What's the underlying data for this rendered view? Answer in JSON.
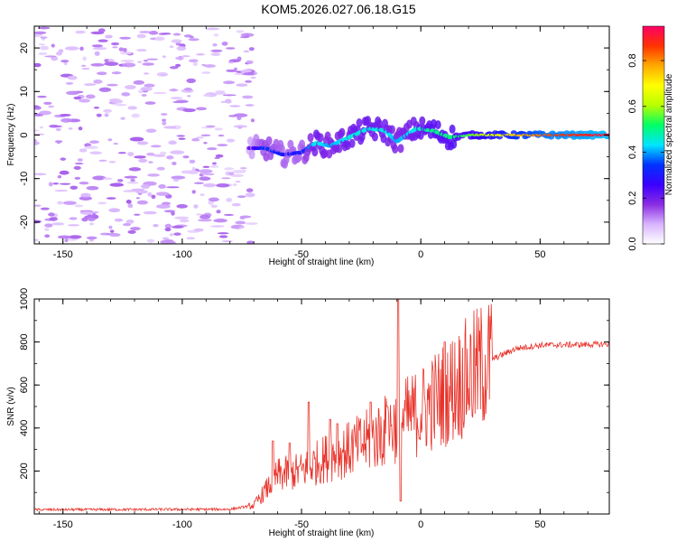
{
  "title": "KOM5.2026.027.06.18.G15",
  "chart_data": [
    {
      "type": "heatmap",
      "name": "spectrogram",
      "xlabel": "Height of straight line (km)",
      "ylabel": "Frequency (Hz)",
      "xlim": [
        -162,
        79
      ],
      "ylim": [
        -25,
        25
      ],
      "xticks": [
        -150,
        -100,
        -50,
        0,
        50
      ],
      "xtick_labels": [
        "-150",
        "-100",
        "-50",
        "0",
        "50"
      ],
      "yticks": [
        -20,
        -10,
        0,
        10,
        20
      ],
      "ytick_labels": [
        "-20",
        "-10",
        "0",
        "10",
        "20"
      ],
      "colorbar": {
        "label": "Normalized spectral amplitude",
        "range": [
          0,
          0.95
        ],
        "ticks": [
          0.0,
          0.2,
          0.4,
          0.6,
          0.8
        ],
        "tick_labels": [
          "0.0",
          "0.2",
          "0.4",
          "0.6",
          "0.8"
        ],
        "colors": [
          "#ffffff",
          "#d8b4fe",
          "#8a2be2",
          "#3a00ff",
          "#0033ff",
          "#00e5ff",
          "#00ff66",
          "#b8ff00",
          "#ffff00",
          "#ffaa00",
          "#ff3300",
          "#ff0066"
        ]
      },
      "ridge": [
        {
          "x": -72,
          "f": -3.0,
          "a": 0.2
        },
        {
          "x": -65,
          "f": -3.0,
          "a": 0.35
        },
        {
          "x": -58,
          "f": -4.5,
          "a": 0.3
        },
        {
          "x": -50,
          "f": -4.0,
          "a": 0.3
        },
        {
          "x": -44,
          "f": -1.8,
          "a": 0.45
        },
        {
          "x": -38,
          "f": -2.5,
          "a": 0.4
        },
        {
          "x": -30,
          "f": -0.5,
          "a": 0.45
        },
        {
          "x": -22,
          "f": 1.5,
          "a": 0.45
        },
        {
          "x": -15,
          "f": 1.0,
          "a": 0.45
        },
        {
          "x": -10,
          "f": -1.5,
          "a": 0.4
        },
        {
          "x": -2,
          "f": 1.5,
          "a": 0.45
        },
        {
          "x": 5,
          "f": 1.0,
          "a": 0.5
        },
        {
          "x": 12,
          "f": -0.5,
          "a": 0.5
        },
        {
          "x": 20,
          "f": 0.0,
          "a": 0.55
        },
        {
          "x": 30,
          "f": 0.0,
          "a": 0.65
        },
        {
          "x": 40,
          "f": 0.0,
          "a": 0.75
        },
        {
          "x": 55,
          "f": 0.0,
          "a": 0.85
        },
        {
          "x": 79,
          "f": 0.0,
          "a": 0.92
        }
      ]
    },
    {
      "type": "line",
      "name": "snr",
      "xlabel": "Height of straight line (km)",
      "ylabel": "SNR (v/v)",
      "xlim": [
        -162,
        79
      ],
      "ylim": [
        0,
        1000
      ],
      "xticks": [
        -150,
        -100,
        -50,
        0,
        50
      ],
      "xtick_labels": [
        "-150",
        "-100",
        "-50",
        "0",
        "50"
      ],
      "yticks": [
        200,
        400,
        600,
        800,
        1000
      ],
      "ytick_labels": [
        "200",
        "400",
        "600",
        "800",
        "1000"
      ],
      "line_color": "#e8332a",
      "envelope": [
        {
          "x": -162,
          "y": 20
        },
        {
          "x": -80,
          "y": 22
        },
        {
          "x": -70,
          "y": 40
        },
        {
          "x": -65,
          "y": 110
        },
        {
          "x": -60,
          "y": 180
        },
        {
          "x": -50,
          "y": 200
        },
        {
          "x": -40,
          "y": 260
        },
        {
          "x": -30,
          "y": 300
        },
        {
          "x": -20,
          "y": 350
        },
        {
          "x": -10,
          "y": 420
        },
        {
          "x": 0,
          "y": 480
        },
        {
          "x": 10,
          "y": 560
        },
        {
          "x": 20,
          "y": 640
        },
        {
          "x": 30,
          "y": 720
        },
        {
          "x": 40,
          "y": 770
        },
        {
          "x": 50,
          "y": 785
        },
        {
          "x": 79,
          "y": 790
        }
      ],
      "spikes": [
        {
          "x": -62,
          "y": 340
        },
        {
          "x": -55,
          "y": 330
        },
        {
          "x": -47,
          "y": 520
        },
        {
          "x": -38,
          "y": 440
        },
        {
          "x": -35,
          "y": 420
        },
        {
          "x": -21,
          "y": 520
        },
        {
          "x": -14,
          "y": 500
        },
        {
          "x": -9.5,
          "y": 1000
        },
        {
          "x": -8.5,
          "y": 60
        },
        {
          "x": 10,
          "y": 800
        }
      ]
    }
  ]
}
